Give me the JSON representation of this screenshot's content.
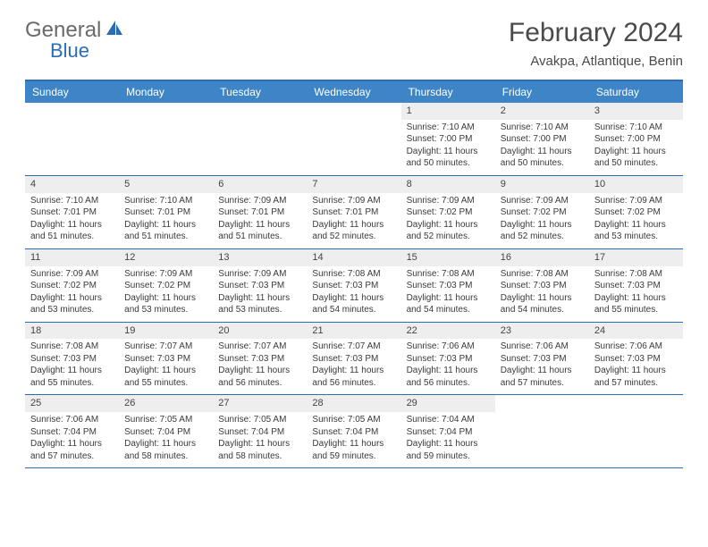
{
  "logo": {
    "text1": "General",
    "text2": "Blue"
  },
  "title": "February 2024",
  "location": "Avakpa, Atlantique, Benin",
  "colors": {
    "header_bar": "#3d85c6",
    "border": "#2a6db5",
    "daynum_bg": "#eeeeee",
    "text": "#3a3a3a"
  },
  "dayNames": [
    "Sunday",
    "Monday",
    "Tuesday",
    "Wednesday",
    "Thursday",
    "Friday",
    "Saturday"
  ],
  "weeks": [
    [
      {
        "n": "",
        "sr": "",
        "ss": "",
        "dl": ""
      },
      {
        "n": "",
        "sr": "",
        "ss": "",
        "dl": ""
      },
      {
        "n": "",
        "sr": "",
        "ss": "",
        "dl": ""
      },
      {
        "n": "",
        "sr": "",
        "ss": "",
        "dl": ""
      },
      {
        "n": "1",
        "sr": "Sunrise: 7:10 AM",
        "ss": "Sunset: 7:00 PM",
        "dl": "Daylight: 11 hours and 50 minutes."
      },
      {
        "n": "2",
        "sr": "Sunrise: 7:10 AM",
        "ss": "Sunset: 7:00 PM",
        "dl": "Daylight: 11 hours and 50 minutes."
      },
      {
        "n": "3",
        "sr": "Sunrise: 7:10 AM",
        "ss": "Sunset: 7:00 PM",
        "dl": "Daylight: 11 hours and 50 minutes."
      }
    ],
    [
      {
        "n": "4",
        "sr": "Sunrise: 7:10 AM",
        "ss": "Sunset: 7:01 PM",
        "dl": "Daylight: 11 hours and 51 minutes."
      },
      {
        "n": "5",
        "sr": "Sunrise: 7:10 AM",
        "ss": "Sunset: 7:01 PM",
        "dl": "Daylight: 11 hours and 51 minutes."
      },
      {
        "n": "6",
        "sr": "Sunrise: 7:09 AM",
        "ss": "Sunset: 7:01 PM",
        "dl": "Daylight: 11 hours and 51 minutes."
      },
      {
        "n": "7",
        "sr": "Sunrise: 7:09 AM",
        "ss": "Sunset: 7:01 PM",
        "dl": "Daylight: 11 hours and 52 minutes."
      },
      {
        "n": "8",
        "sr": "Sunrise: 7:09 AM",
        "ss": "Sunset: 7:02 PM",
        "dl": "Daylight: 11 hours and 52 minutes."
      },
      {
        "n": "9",
        "sr": "Sunrise: 7:09 AM",
        "ss": "Sunset: 7:02 PM",
        "dl": "Daylight: 11 hours and 52 minutes."
      },
      {
        "n": "10",
        "sr": "Sunrise: 7:09 AM",
        "ss": "Sunset: 7:02 PM",
        "dl": "Daylight: 11 hours and 53 minutes."
      }
    ],
    [
      {
        "n": "11",
        "sr": "Sunrise: 7:09 AM",
        "ss": "Sunset: 7:02 PM",
        "dl": "Daylight: 11 hours and 53 minutes."
      },
      {
        "n": "12",
        "sr": "Sunrise: 7:09 AM",
        "ss": "Sunset: 7:02 PM",
        "dl": "Daylight: 11 hours and 53 minutes."
      },
      {
        "n": "13",
        "sr": "Sunrise: 7:09 AM",
        "ss": "Sunset: 7:03 PM",
        "dl": "Daylight: 11 hours and 53 minutes."
      },
      {
        "n": "14",
        "sr": "Sunrise: 7:08 AM",
        "ss": "Sunset: 7:03 PM",
        "dl": "Daylight: 11 hours and 54 minutes."
      },
      {
        "n": "15",
        "sr": "Sunrise: 7:08 AM",
        "ss": "Sunset: 7:03 PM",
        "dl": "Daylight: 11 hours and 54 minutes."
      },
      {
        "n": "16",
        "sr": "Sunrise: 7:08 AM",
        "ss": "Sunset: 7:03 PM",
        "dl": "Daylight: 11 hours and 54 minutes."
      },
      {
        "n": "17",
        "sr": "Sunrise: 7:08 AM",
        "ss": "Sunset: 7:03 PM",
        "dl": "Daylight: 11 hours and 55 minutes."
      }
    ],
    [
      {
        "n": "18",
        "sr": "Sunrise: 7:08 AM",
        "ss": "Sunset: 7:03 PM",
        "dl": "Daylight: 11 hours and 55 minutes."
      },
      {
        "n": "19",
        "sr": "Sunrise: 7:07 AM",
        "ss": "Sunset: 7:03 PM",
        "dl": "Daylight: 11 hours and 55 minutes."
      },
      {
        "n": "20",
        "sr": "Sunrise: 7:07 AM",
        "ss": "Sunset: 7:03 PM",
        "dl": "Daylight: 11 hours and 56 minutes."
      },
      {
        "n": "21",
        "sr": "Sunrise: 7:07 AM",
        "ss": "Sunset: 7:03 PM",
        "dl": "Daylight: 11 hours and 56 minutes."
      },
      {
        "n": "22",
        "sr": "Sunrise: 7:06 AM",
        "ss": "Sunset: 7:03 PM",
        "dl": "Daylight: 11 hours and 56 minutes."
      },
      {
        "n": "23",
        "sr": "Sunrise: 7:06 AM",
        "ss": "Sunset: 7:03 PM",
        "dl": "Daylight: 11 hours and 57 minutes."
      },
      {
        "n": "24",
        "sr": "Sunrise: 7:06 AM",
        "ss": "Sunset: 7:03 PM",
        "dl": "Daylight: 11 hours and 57 minutes."
      }
    ],
    [
      {
        "n": "25",
        "sr": "Sunrise: 7:06 AM",
        "ss": "Sunset: 7:04 PM",
        "dl": "Daylight: 11 hours and 57 minutes."
      },
      {
        "n": "26",
        "sr": "Sunrise: 7:05 AM",
        "ss": "Sunset: 7:04 PM",
        "dl": "Daylight: 11 hours and 58 minutes."
      },
      {
        "n": "27",
        "sr": "Sunrise: 7:05 AM",
        "ss": "Sunset: 7:04 PM",
        "dl": "Daylight: 11 hours and 58 minutes."
      },
      {
        "n": "28",
        "sr": "Sunrise: 7:05 AM",
        "ss": "Sunset: 7:04 PM",
        "dl": "Daylight: 11 hours and 59 minutes."
      },
      {
        "n": "29",
        "sr": "Sunrise: 7:04 AM",
        "ss": "Sunset: 7:04 PM",
        "dl": "Daylight: 11 hours and 59 minutes."
      },
      {
        "n": "",
        "sr": "",
        "ss": "",
        "dl": ""
      },
      {
        "n": "",
        "sr": "",
        "ss": "",
        "dl": ""
      }
    ]
  ]
}
